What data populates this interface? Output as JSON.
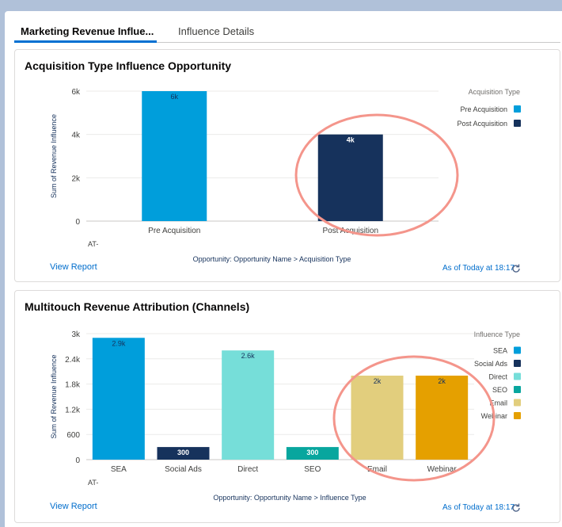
{
  "tabs": [
    {
      "label": "Marketing Revenue Influe...",
      "active": true
    },
    {
      "label": "Influence Details",
      "active": false
    }
  ],
  "colors": {
    "pre": "#009edb",
    "post": "#16325c",
    "sea": "#009edb",
    "social": "#16325c",
    "direct": "#76ded9",
    "seo": "#08a69e",
    "email": "#e2ce7d",
    "webinar": "#e5a000",
    "highlight": "#f4958b"
  },
  "card1": {
    "title": "Acquisition Type Influence Opportunity",
    "view_report": "View Report",
    "as_of": "As of Today at 18:17",
    "refresh_icon": "refresh-icon",
    "at_label": "AT-"
  },
  "card2": {
    "title": "Multitouch Revenue Attribution (Channels)",
    "view_report": "View Report",
    "as_of": "As of Today at 18:17",
    "refresh_icon": "refresh-icon",
    "at_label": "AT-"
  },
  "chart_data": [
    {
      "type": "bar",
      "title": "Acquisition Type Influence Opportunity",
      "xlabel": "Opportunity: Opportunity Name > Acquisition Type",
      "ylabel": "Sum of Revenue Influence",
      "categories": [
        "Pre Acquisition",
        "Post Acquisition"
      ],
      "values": [
        6000,
        4000
      ],
      "data_labels": [
        "6k",
        "4k"
      ],
      "yticks": [
        0,
        2000,
        4000,
        6000
      ],
      "ytick_labels": [
        "0",
        "2k",
        "4k",
        "6k"
      ],
      "ylim": [
        0,
        6000
      ],
      "legend_title": "Acquisition Type",
      "legend": [
        "Pre Acquisition",
        "Post Acquisition"
      ],
      "color_keys": [
        "pre",
        "post"
      ],
      "highlight_index": 1
    },
    {
      "type": "bar",
      "title": "Multitouch Revenue Attribution (Channels)",
      "xlabel": "Opportunity: Opportunity Name > Influence Type",
      "ylabel": "Sum of Revenue Influence",
      "categories": [
        "SEA",
        "Social Ads",
        "Direct",
        "SEO",
        "Email",
        "Webinar"
      ],
      "values": [
        2900,
        300,
        2600,
        300,
        2000,
        2000
      ],
      "data_labels": [
        "2.9k",
        "300",
        "2.6k",
        "300",
        "2k",
        "2k"
      ],
      "yticks": [
        0,
        600,
        1200,
        1800,
        2400,
        3000
      ],
      "ytick_labels": [
        "0",
        "600",
        "1.2k",
        "1.8k",
        "2.4k",
        "3k"
      ],
      "ylim": [
        0,
        3000
      ],
      "legend_title": "Influence Type",
      "legend": [
        "SEA",
        "Social Ads",
        "Direct",
        "SEO",
        "Email",
        "Webinar"
      ],
      "color_keys": [
        "sea",
        "social",
        "direct",
        "seo",
        "email",
        "webinar"
      ],
      "highlight_range": [
        4,
        5
      ]
    }
  ]
}
